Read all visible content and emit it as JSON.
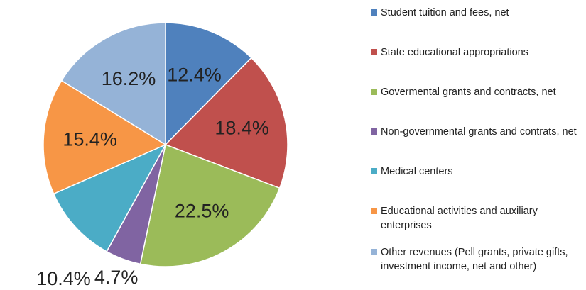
{
  "chart_data": {
    "type": "pie",
    "title": "",
    "categories": [
      "Student tuition and fees, net",
      "State educational appropriations",
      "Govermental grants and contracts, net",
      "Non-governmental grants and contrats, net",
      "Medical centers",
      "Educational activities and auxiliary enterprises",
      "Other revenues (Pell grants, private gifts, investment income, net and other)"
    ],
    "values": [
      12.4,
      18.4,
      22.5,
      4.7,
      10.4,
      15.4,
      16.2
    ],
    "labels": [
      "12.4%",
      "18.4%",
      "22.5%",
      "4.7%",
      "10.4%",
      "15.4%",
      "16.2%"
    ],
    "colors": [
      "#4F81BD",
      "#C0504D",
      "#9BBB59",
      "#8064A2",
      "#4BACC6",
      "#F79646",
      "#95B3D7"
    ],
    "legend_position": "right"
  }
}
